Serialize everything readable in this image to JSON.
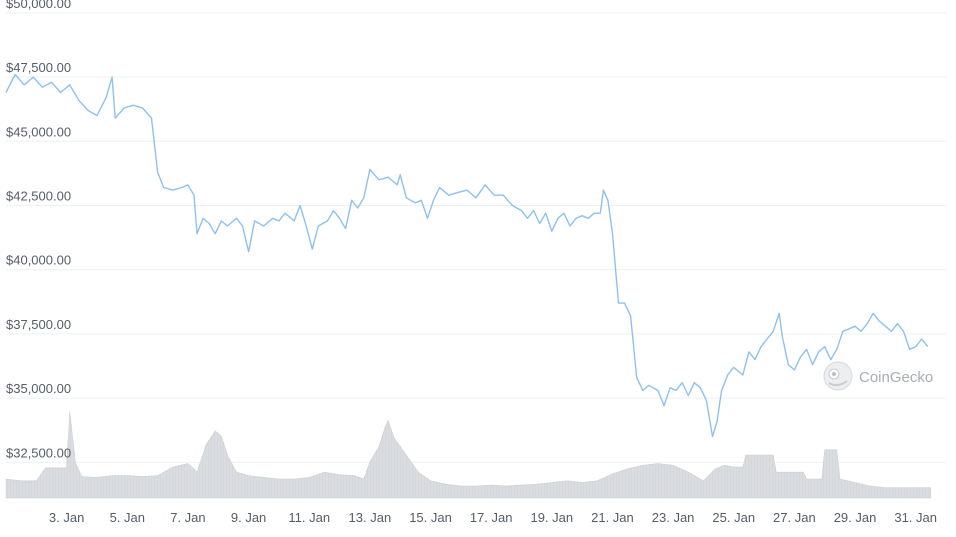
{
  "chart_data": {
    "type": "line",
    "title": "",
    "xlabel": "",
    "ylabel": "",
    "x_domain_days": [
      1,
      32
    ],
    "ylim": [
      31500,
      50500
    ],
    "yticks": [
      {
        "value": 50000,
        "label": "$50,000.00"
      },
      {
        "value": 47500,
        "label": "$47,500.00"
      },
      {
        "value": 45000,
        "label": "$45,000.00"
      },
      {
        "value": 42500,
        "label": "$42,500.00"
      },
      {
        "value": 40000,
        "label": "$40,000.00"
      },
      {
        "value": 37500,
        "label": "$37,500.00"
      },
      {
        "value": 35000,
        "label": "$35,000.00"
      },
      {
        "value": 32500,
        "label": "$32,500.00"
      }
    ],
    "xticks": [
      {
        "day": 3,
        "label": "3. Jan"
      },
      {
        "day": 5,
        "label": "5. Jan"
      },
      {
        "day": 7,
        "label": "7. Jan"
      },
      {
        "day": 9,
        "label": "9. Jan"
      },
      {
        "day": 11,
        "label": "11. Jan"
      },
      {
        "day": 13,
        "label": "13. Jan"
      },
      {
        "day": 15,
        "label": "15. Jan"
      },
      {
        "day": 17,
        "label": "17. Jan"
      },
      {
        "day": 19,
        "label": "19. Jan"
      },
      {
        "day": 21,
        "label": "21. Jan"
      },
      {
        "day": 23,
        "label": "23. Jan"
      },
      {
        "day": 25,
        "label": "25. Jan"
      },
      {
        "day": 27,
        "label": "27. Jan"
      },
      {
        "day": 29,
        "label": "29. Jan"
      },
      {
        "day": 31,
        "label": "31. Jan"
      }
    ],
    "grid": true,
    "price_series": {
      "name": "",
      "color": "#8dc1ef",
      "points": [
        [
          1.0,
          46900
        ],
        [
          1.3,
          47600
        ],
        [
          1.6,
          47200
        ],
        [
          1.9,
          47500
        ],
        [
          2.2,
          47100
        ],
        [
          2.5,
          47300
        ],
        [
          2.8,
          46900
        ],
        [
          3.1,
          47200
        ],
        [
          3.4,
          46600
        ],
        [
          3.7,
          46200
        ],
        [
          4.0,
          46000
        ],
        [
          4.3,
          46700
        ],
        [
          4.5,
          47500
        ],
        [
          4.6,
          45900
        ],
        [
          4.9,
          46300
        ],
        [
          5.2,
          46400
        ],
        [
          5.5,
          46300
        ],
        [
          5.8,
          45900
        ],
        [
          6.0,
          43800
        ],
        [
          6.2,
          43200
        ],
        [
          6.5,
          43100
        ],
        [
          6.8,
          43200
        ],
        [
          7.0,
          43300
        ],
        [
          7.2,
          42900
        ],
        [
          7.3,
          41400
        ],
        [
          7.5,
          42000
        ],
        [
          7.7,
          41800
        ],
        [
          7.9,
          41400
        ],
        [
          8.1,
          41900
        ],
        [
          8.3,
          41700
        ],
        [
          8.6,
          42000
        ],
        [
          8.8,
          41700
        ],
        [
          9.0,
          40700
        ],
        [
          9.2,
          41900
        ],
        [
          9.5,
          41700
        ],
        [
          9.8,
          42000
        ],
        [
          10.0,
          41900
        ],
        [
          10.2,
          42200
        ],
        [
          10.5,
          41900
        ],
        [
          10.7,
          42500
        ],
        [
          10.9,
          41700
        ],
        [
          11.1,
          40800
        ],
        [
          11.3,
          41700
        ],
        [
          11.6,
          41900
        ],
        [
          11.8,
          42300
        ],
        [
          12.0,
          42000
        ],
        [
          12.2,
          41600
        ],
        [
          12.4,
          42700
        ],
        [
          12.6,
          42400
        ],
        [
          12.8,
          42800
        ],
        [
          13.0,
          43900
        ],
        [
          13.3,
          43500
        ],
        [
          13.6,
          43600
        ],
        [
          13.9,
          43300
        ],
        [
          14.0,
          43700
        ],
        [
          14.2,
          42800
        ],
        [
          14.5,
          42600
        ],
        [
          14.7,
          42700
        ],
        [
          14.9,
          42000
        ],
        [
          15.1,
          42700
        ],
        [
          15.3,
          43200
        ],
        [
          15.6,
          42900
        ],
        [
          15.9,
          43000
        ],
        [
          16.2,
          43100
        ],
        [
          16.5,
          42800
        ],
        [
          16.8,
          43300
        ],
        [
          17.1,
          42900
        ],
        [
          17.4,
          42900
        ],
        [
          17.7,
          42500
        ],
        [
          18.0,
          42300
        ],
        [
          18.2,
          42000
        ],
        [
          18.4,
          42300
        ],
        [
          18.6,
          41800
        ],
        [
          18.8,
          42200
        ],
        [
          19.0,
          41500
        ],
        [
          19.2,
          42000
        ],
        [
          19.4,
          42200
        ],
        [
          19.6,
          41700
        ],
        [
          19.8,
          42000
        ],
        [
          20.0,
          42100
        ],
        [
          20.2,
          42000
        ],
        [
          20.4,
          42200
        ],
        [
          20.6,
          42200
        ],
        [
          20.7,
          43100
        ],
        [
          20.85,
          42700
        ],
        [
          21.0,
          41400
        ],
        [
          21.2,
          38700
        ],
        [
          21.4,
          38700
        ],
        [
          21.6,
          38200
        ],
        [
          21.8,
          35800
        ],
        [
          22.0,
          35300
        ],
        [
          22.2,
          35500
        ],
        [
          22.5,
          35300
        ],
        [
          22.7,
          34700
        ],
        [
          22.9,
          35400
        ],
        [
          23.1,
          35300
        ],
        [
          23.3,
          35600
        ],
        [
          23.5,
          35100
        ],
        [
          23.7,
          35600
        ],
        [
          23.9,
          35400
        ],
        [
          24.1,
          34900
        ],
        [
          24.3,
          33500
        ],
        [
          24.45,
          34100
        ],
        [
          24.6,
          35300
        ],
        [
          24.8,
          35900
        ],
        [
          25.0,
          36200
        ],
        [
          25.3,
          35900
        ],
        [
          25.5,
          36800
        ],
        [
          25.7,
          36500
        ],
        [
          25.9,
          37000
        ],
        [
          26.1,
          37300
        ],
        [
          26.3,
          37600
        ],
        [
          26.5,
          38300
        ],
        [
          26.6,
          37400
        ],
        [
          26.8,
          36300
        ],
        [
          27.0,
          36100
        ],
        [
          27.2,
          36600
        ],
        [
          27.4,
          36900
        ],
        [
          27.6,
          36300
        ],
        [
          27.8,
          36800
        ],
        [
          28.0,
          37000
        ],
        [
          28.2,
          36500
        ],
        [
          28.4,
          36900
        ],
        [
          28.6,
          37600
        ],
        [
          28.8,
          37700
        ],
        [
          29.0,
          37800
        ],
        [
          29.2,
          37600
        ],
        [
          29.4,
          37900
        ],
        [
          29.6,
          38300
        ],
        [
          29.8,
          38000
        ],
        [
          30.0,
          37800
        ],
        [
          30.2,
          37600
        ],
        [
          30.4,
          37900
        ],
        [
          30.6,
          37600
        ],
        [
          30.8,
          36900
        ],
        [
          31.0,
          37000
        ],
        [
          31.2,
          37300
        ],
        [
          31.4,
          37000
        ]
      ]
    },
    "volume_series": {
      "name": "",
      "color": "#d4d7db",
      "ylim": [
        0,
        1
      ],
      "points": [
        [
          1.0,
          0.22
        ],
        [
          1.5,
          0.2
        ],
        [
          2.0,
          0.2
        ],
        [
          2.3,
          0.35
        ],
        [
          2.8,
          0.35
        ],
        [
          3.0,
          0.35
        ],
        [
          3.1,
          1.0
        ],
        [
          3.3,
          0.4
        ],
        [
          3.5,
          0.25
        ],
        [
          4.0,
          0.24
        ],
        [
          4.5,
          0.26
        ],
        [
          5.0,
          0.26
        ],
        [
          5.5,
          0.25
        ],
        [
          6.0,
          0.26
        ],
        [
          6.5,
          0.36
        ],
        [
          7.0,
          0.4
        ],
        [
          7.2,
          0.34
        ],
        [
          7.3,
          0.3
        ],
        [
          7.6,
          0.62
        ],
        [
          7.9,
          0.78
        ],
        [
          8.1,
          0.72
        ],
        [
          8.3,
          0.5
        ],
        [
          8.6,
          0.3
        ],
        [
          9.0,
          0.26
        ],
        [
          9.5,
          0.24
        ],
        [
          10.0,
          0.22
        ],
        [
          10.5,
          0.22
        ],
        [
          11.0,
          0.24
        ],
        [
          11.5,
          0.3
        ],
        [
          12.0,
          0.27
        ],
        [
          12.5,
          0.26
        ],
        [
          12.8,
          0.22
        ],
        [
          13.0,
          0.42
        ],
        [
          13.3,
          0.6
        ],
        [
          13.5,
          0.82
        ],
        [
          13.6,
          0.9
        ],
        [
          13.8,
          0.7
        ],
        [
          14.2,
          0.5
        ],
        [
          14.6,
          0.3
        ],
        [
          15.0,
          0.2
        ],
        [
          15.5,
          0.16
        ],
        [
          16.0,
          0.14
        ],
        [
          16.5,
          0.14
        ],
        [
          17.0,
          0.15
        ],
        [
          17.5,
          0.14
        ],
        [
          18.0,
          0.15
        ],
        [
          18.5,
          0.16
        ],
        [
          19.0,
          0.18
        ],
        [
          19.5,
          0.2
        ],
        [
          20.0,
          0.18
        ],
        [
          20.5,
          0.2
        ],
        [
          21.0,
          0.28
        ],
        [
          21.5,
          0.34
        ],
        [
          22.0,
          0.38
        ],
        [
          22.5,
          0.4
        ],
        [
          23.0,
          0.38
        ],
        [
          23.5,
          0.3
        ],
        [
          24.0,
          0.2
        ],
        [
          24.4,
          0.34
        ],
        [
          24.7,
          0.38
        ],
        [
          25.0,
          0.36
        ],
        [
          25.3,
          0.36
        ],
        [
          25.4,
          0.5
        ],
        [
          26.3,
          0.5
        ],
        [
          26.4,
          0.3
        ],
        [
          27.0,
          0.3
        ],
        [
          27.3,
          0.3
        ],
        [
          27.4,
          0.22
        ],
        [
          27.9,
          0.22
        ],
        [
          28.0,
          0.56
        ],
        [
          28.4,
          0.56
        ],
        [
          28.5,
          0.22
        ],
        [
          29.0,
          0.18
        ],
        [
          29.5,
          0.14
        ],
        [
          30.0,
          0.12
        ],
        [
          30.5,
          0.12
        ],
        [
          31.0,
          0.12
        ],
        [
          31.5,
          0.12
        ]
      ]
    },
    "watermark": {
      "text": "CoinGecko",
      "icon": "coingecko-gecko-icon"
    }
  }
}
